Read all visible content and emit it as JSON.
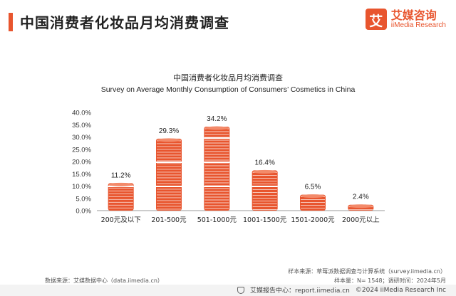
{
  "header": {
    "title": "中国消费者化妆品月均消费调查",
    "brand_logo_char": "艾",
    "brand_cn": "艾媒咨询",
    "brand_en": "iiMedia Research",
    "accent_color": "#e8552e"
  },
  "chart_data": {
    "type": "bar",
    "title": "中国消费者化妆品月均消费调查",
    "subtitle": "Survey on Average Monthly Consumption of Consumers’ Cosmetics in China",
    "categories": [
      "200元及以下",
      "201-500元",
      "501-1000元",
      "1001-1500元",
      "1501-2000元",
      "2000元以上"
    ],
    "values": [
      11.2,
      29.3,
      34.2,
      16.4,
      6.5,
      2.4
    ],
    "value_labels": [
      "11.2%",
      "29.3%",
      "34.2%",
      "16.4%",
      "6.5%",
      "2.4%"
    ],
    "y_ticks": [
      "0.0%",
      "5.0%",
      "10.0%",
      "15.0%",
      "20.0%",
      "25.0%",
      "30.0%",
      "35.0%",
      "40.0%"
    ],
    "ylim": [
      0,
      40
    ],
    "grid": false,
    "bar_color": "#e8552e",
    "bar_style": "stacked-coins"
  },
  "footer": {
    "source_left": "数据来源：艾媒数据中心（data.iimedia.cn）",
    "sample_source": "样本来源：草莓派数据调查与计算系统（survey.iimedia.cn）",
    "sample_info": "样本量：N= 1548；调研时间：2024年5月",
    "report_center": "艾媒报告中心：report.iimedia.cn",
    "copyright": "©2024  iiMedia Research  Inc"
  }
}
